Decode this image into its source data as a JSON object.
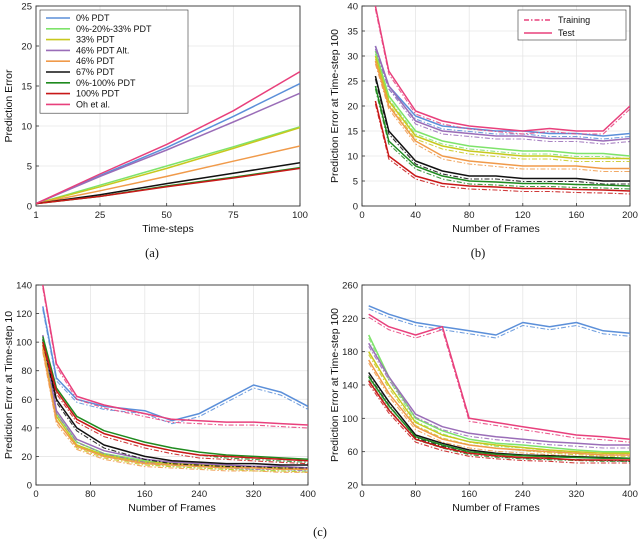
{
  "captions": {
    "a": "(a)",
    "b": "(b)",
    "c": "(c)"
  },
  "chart_data": [
    {
      "id": "a",
      "type": "line",
      "title": "",
      "xlabel": "Time-steps",
      "ylabel": "Prediction Error",
      "xlim": [
        1,
        100
      ],
      "ylim": [
        0,
        25
      ],
      "xticks": [
        1,
        25,
        50,
        75,
        100
      ],
      "yticks": [
        0,
        5,
        10,
        15,
        20,
        25
      ],
      "legend_position": "top-left",
      "series": [
        {
          "name": "0% PDT",
          "color": "#5b8fd9",
          "x": [
            1,
            25,
            50,
            75,
            100
          ],
          "y": [
            0.3,
            3.8,
            7.3,
            11.2,
            15.3
          ]
        },
        {
          "name": "0%-20%-33% PDT",
          "color": "#7ee36b",
          "x": [
            1,
            25,
            50,
            75,
            100
          ],
          "y": [
            0.3,
            2.6,
            5.0,
            7.4,
            9.9
          ]
        },
        {
          "name": "33% PDT",
          "color": "#c8c81e",
          "x": [
            1,
            25,
            50,
            75,
            100
          ],
          "y": [
            0.3,
            2.4,
            4.7,
            7.2,
            9.8
          ]
        },
        {
          "name": "46% PDT Alt.",
          "color": "#9a6db8",
          "x": [
            1,
            25,
            50,
            75,
            100
          ],
          "y": [
            0.3,
            3.7,
            7.0,
            10.5,
            14.1
          ]
        },
        {
          "name": "46% PDT",
          "color": "#f09a4a",
          "x": [
            1,
            25,
            50,
            75,
            100
          ],
          "y": [
            0.3,
            1.9,
            3.7,
            5.6,
            7.5
          ]
        },
        {
          "name": "67% PDT",
          "color": "#111111",
          "x": [
            1,
            25,
            50,
            75,
            100
          ],
          "y": [
            0.3,
            1.4,
            2.8,
            4.1,
            5.4
          ]
        },
        {
          "name": "0%-100% PDT",
          "color": "#1f8a1f",
          "x": [
            1,
            25,
            50,
            75,
            100
          ],
          "y": [
            0.3,
            1.2,
            2.5,
            3.6,
            4.8
          ]
        },
        {
          "name": "100% PDT",
          "color": "#c81818",
          "x": [
            1,
            25,
            50,
            75,
            100
          ],
          "y": [
            0.3,
            1.2,
            2.4,
            3.5,
            4.7
          ]
        },
        {
          "name": "Oh et al.",
          "color": "#e8407c",
          "x": [
            1,
            25,
            50,
            75,
            100
          ],
          "y": [
            0.3,
            4.0,
            7.7,
            11.9,
            16.8
          ]
        }
      ]
    },
    {
      "id": "b",
      "type": "line",
      "xlabel": "Number of Frames",
      "ylabel": "Prediction Error at Time-step 100",
      "xlim": [
        0,
        200
      ],
      "ylim": [
        0,
        40
      ],
      "xticks": [
        0,
        40,
        80,
        120,
        160,
        200
      ],
      "yticks": [
        0,
        5,
        10,
        15,
        20,
        25,
        30,
        35,
        40
      ],
      "legend_position": "top-right",
      "legend": [
        {
          "label": "Training",
          "style": "dashdot"
        },
        {
          "label": "Test",
          "style": "solid"
        }
      ],
      "series": [
        {
          "name": "0% PDT",
          "color": "#5b8fd9",
          "x": [
            10,
            20,
            40,
            60,
            80,
            100,
            120,
            140,
            160,
            180,
            200
          ],
          "y": [
            32,
            24,
            18,
            16,
            15.5,
            15,
            15,
            14.5,
            14.5,
            14,
            14.5
          ]
        },
        {
          "name": "0%-20%-33% PDT",
          "color": "#7ee36b",
          "x": [
            10,
            20,
            40,
            60,
            80,
            100,
            120,
            140,
            160,
            180,
            200
          ],
          "y": [
            31,
            22,
            15,
            13,
            12,
            11.5,
            11,
            11,
            10.5,
            10.5,
            10
          ]
        },
        {
          "name": "33% PDT",
          "color": "#c8c81e",
          "x": [
            10,
            20,
            40,
            60,
            80,
            100,
            120,
            140,
            160,
            180,
            200
          ],
          "y": [
            30,
            21,
            14,
            12,
            11,
            10.5,
            10,
            10,
            9.5,
            9.5,
            9.5
          ]
        },
        {
          "name": "46% PDT Alt.",
          "color": "#9a6db8",
          "x": [
            10,
            20,
            40,
            60,
            80,
            100,
            120,
            140,
            160,
            180,
            200
          ],
          "y": [
            32,
            24,
            17,
            15,
            14.5,
            14,
            14,
            13.5,
            13.5,
            13,
            13.5
          ]
        },
        {
          "name": "46% PDT",
          "color": "#f09a4a",
          "x": [
            10,
            20,
            40,
            60,
            80,
            100,
            120,
            140,
            160,
            180,
            200
          ],
          "y": [
            29,
            20,
            13,
            10,
            9,
            8.5,
            8,
            8,
            8,
            7.5,
            7.5
          ]
        },
        {
          "name": "67% PDT",
          "color": "#111111",
          "x": [
            10,
            20,
            40,
            60,
            80,
            100,
            120,
            140,
            160,
            180,
            200
          ],
          "y": [
            26,
            15,
            9,
            7,
            6,
            6,
            5.5,
            5.5,
            5.5,
            5,
            5
          ]
        },
        {
          "name": "0%-100% PDT",
          "color": "#1f8a1f",
          "x": [
            10,
            20,
            40,
            60,
            80,
            100,
            120,
            140,
            160,
            180,
            200
          ],
          "y": [
            24,
            13,
            8,
            6,
            5,
            4.8,
            4.5,
            4.5,
            4.3,
            4.2,
            4
          ]
        },
        {
          "name": "100% PDT",
          "color": "#c81818",
          "x": [
            10,
            20,
            40,
            60,
            80,
            100,
            120,
            140,
            160,
            180,
            200
          ],
          "y": [
            21,
            10,
            6,
            4.5,
            4,
            3.8,
            3.5,
            3.5,
            3.3,
            3.2,
            3
          ]
        },
        {
          "name": "Oh et al.",
          "color": "#e8407c",
          "x": [
            10,
            20,
            40,
            60,
            80,
            100,
            120,
            140,
            160,
            180,
            200
          ],
          "y": [
            40,
            27,
            19,
            17,
            16,
            15.5,
            15,
            15.5,
            15,
            15,
            20
          ]
        }
      ]
    },
    {
      "id": "c1",
      "type": "line",
      "xlabel": "Number of Frames",
      "ylabel": "Prediction Error at Time-step 10",
      "xlim": [
        0,
        400
      ],
      "ylim": [
        0,
        140
      ],
      "xticks": [
        0,
        80,
        160,
        240,
        320,
        400
      ],
      "yticks": [
        0,
        20,
        40,
        60,
        80,
        100,
        120,
        140
      ],
      "series": [
        {
          "name": "0% PDT",
          "color": "#5b8fd9",
          "x": [
            10,
            30,
            60,
            100,
            160,
            200,
            240,
            280,
            320,
            360,
            400
          ],
          "y": [
            125,
            75,
            60,
            55,
            52,
            45,
            50,
            60,
            70,
            65,
            55
          ]
        },
        {
          "name": "0%-20%-33% PDT",
          "color": "#7ee36b",
          "x": [
            10,
            30,
            60,
            100,
            160,
            200,
            240,
            280,
            320,
            360,
            400
          ],
          "y": [
            100,
            50,
            30,
            22,
            17,
            15,
            14,
            13,
            13,
            12,
            12
          ]
        },
        {
          "name": "33% PDT",
          "color": "#c8c81e",
          "x": [
            10,
            30,
            60,
            100,
            160,
            200,
            240,
            280,
            320,
            360,
            400
          ],
          "y": [
            98,
            48,
            28,
            21,
            16,
            15,
            14,
            13,
            12,
            12,
            11
          ]
        },
        {
          "name": "46% PDT Alt.",
          "color": "#9a6db8",
          "x": [
            10,
            30,
            60,
            100,
            160,
            200,
            240,
            280,
            320,
            360,
            400
          ],
          "y": [
            105,
            52,
            32,
            24,
            18,
            16,
            15,
            14,
            13,
            13,
            12
          ]
        },
        {
          "name": "46% PDT",
          "color": "#f09a4a",
          "x": [
            10,
            30,
            60,
            100,
            160,
            200,
            240,
            280,
            320,
            360,
            400
          ],
          "y": [
            95,
            45,
            27,
            20,
            15,
            14,
            13,
            12,
            12,
            11,
            11
          ]
        },
        {
          "name": "67% PDT",
          "color": "#111111",
          "x": [
            10,
            30,
            60,
            100,
            160,
            200,
            240,
            280,
            320,
            360,
            400
          ],
          "y": [
            102,
            60,
            40,
            28,
            20,
            17,
            16,
            15,
            15,
            14,
            14
          ]
        },
        {
          "name": "0%-100% PDT",
          "color": "#1f8a1f",
          "x": [
            10,
            30,
            60,
            100,
            160,
            200,
            240,
            280,
            320,
            360,
            400
          ],
          "y": [
            104,
            68,
            48,
            38,
            30,
            26,
            23,
            21,
            20,
            19,
            18
          ]
        },
        {
          "name": "100% PDT",
          "color": "#c81818",
          "x": [
            10,
            30,
            60,
            100,
            160,
            200,
            240,
            280,
            320,
            360,
            400
          ],
          "y": [
            100,
            66,
            46,
            36,
            28,
            24,
            21,
            20,
            19,
            18,
            17
          ]
        },
        {
          "name": "Oh et al.",
          "color": "#e8407c",
          "x": [
            10,
            30,
            60,
            100,
            160,
            200,
            240,
            280,
            320,
            360,
            400
          ],
          "y": [
            140,
            85,
            62,
            56,
            50,
            46,
            45,
            44,
            44,
            43,
            42
          ]
        }
      ]
    },
    {
      "id": "c2",
      "type": "line",
      "xlabel": "Number of Frames",
      "ylabel": "Prediction Error at Time-step 100",
      "xlim": [
        0,
        400
      ],
      "ylim": [
        20,
        260
      ],
      "xticks": [
        0,
        80,
        160,
        240,
        320,
        400
      ],
      "yticks": [
        20,
        60,
        100,
        140,
        180,
        220,
        260
      ],
      "series": [
        {
          "name": "0% PDT",
          "color": "#5b8fd9",
          "x": [
            10,
            40,
            80,
            120,
            160,
            200,
            240,
            280,
            320,
            360,
            400
          ],
          "y": [
            235,
            225,
            215,
            210,
            205,
            200,
            215,
            210,
            215,
            205,
            202
          ]
        },
        {
          "name": "0%-20%-33% PDT",
          "color": "#7ee36b",
          "x": [
            10,
            40,
            80,
            120,
            160,
            200,
            240,
            280,
            320,
            360,
            400
          ],
          "y": [
            200,
            150,
            100,
            85,
            75,
            70,
            68,
            65,
            62,
            60,
            60
          ]
        },
        {
          "name": "33% PDT",
          "color": "#c8c81e",
          "x": [
            10,
            40,
            80,
            120,
            160,
            200,
            240,
            280,
            320,
            360,
            400
          ],
          "y": [
            180,
            140,
            95,
            80,
            72,
            68,
            65,
            62,
            60,
            58,
            58
          ]
        },
        {
          "name": "46% PDT Alt.",
          "color": "#9a6db8",
          "x": [
            10,
            40,
            80,
            120,
            160,
            200,
            240,
            280,
            320,
            360,
            400
          ],
          "y": [
            190,
            150,
            105,
            90,
            82,
            78,
            75,
            72,
            70,
            68,
            68
          ]
        },
        {
          "name": "46% PDT",
          "color": "#f09a4a",
          "x": [
            10,
            40,
            80,
            120,
            160,
            200,
            240,
            280,
            320,
            360,
            400
          ],
          "y": [
            170,
            130,
            90,
            75,
            68,
            64,
            62,
            60,
            58,
            56,
            56
          ]
        },
        {
          "name": "67% PDT",
          "color": "#111111",
          "x": [
            10,
            40,
            80,
            120,
            160,
            200,
            240,
            280,
            320,
            360,
            400
          ],
          "y": [
            155,
            120,
            80,
            70,
            62,
            58,
            56,
            55,
            54,
            53,
            52
          ]
        },
        {
          "name": "0%-100% PDT",
          "color": "#1f8a1f",
          "x": [
            10,
            40,
            80,
            120,
            160,
            200,
            240,
            280,
            320,
            360,
            400
          ],
          "y": [
            150,
            115,
            78,
            68,
            60,
            57,
            55,
            54,
            53,
            52,
            52
          ]
        },
        {
          "name": "100% PDT",
          "color": "#c81818",
          "x": [
            10,
            40,
            80,
            120,
            160,
            200,
            240,
            280,
            320,
            360,
            400
          ],
          "y": [
            145,
            110,
            75,
            65,
            58,
            55,
            53,
            52,
            50,
            50,
            50
          ]
        },
        {
          "name": "Oh et al.",
          "color": "#e8407c",
          "x": [
            10,
            40,
            80,
            120,
            160,
            200,
            240,
            280,
            320,
            360,
            400
          ],
          "y": [
            225,
            210,
            200,
            210,
            100,
            95,
            90,
            85,
            80,
            78,
            75
          ]
        }
      ]
    }
  ]
}
